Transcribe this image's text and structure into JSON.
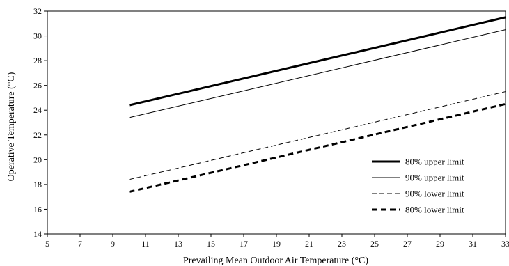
{
  "chart_data": {
    "type": "line",
    "title": "",
    "xlabel": "Prevailing Mean Outdoor Air Temperature (°C)",
    "ylabel": "Operative Temperature (°C)",
    "xlim": [
      5,
      33
    ],
    "ylim": [
      14,
      32
    ],
    "xticks": [
      5,
      7,
      9,
      11,
      13,
      15,
      17,
      19,
      21,
      23,
      25,
      27,
      29,
      31,
      33
    ],
    "yticks": [
      14,
      16,
      18,
      20,
      22,
      24,
      26,
      28,
      30,
      32
    ],
    "grid": false,
    "legend_position": "bottom-right",
    "series": [
      {
        "name": "80% upper limit",
        "x": [
          10,
          33
        ],
        "y": [
          24.4,
          31.5
        ],
        "style": "solid",
        "weight": "thick",
        "color": "#000000"
      },
      {
        "name": "90% upper limit",
        "x": [
          10,
          33
        ],
        "y": [
          23.4,
          30.5
        ],
        "style": "solid",
        "weight": "thin",
        "color": "#000000"
      },
      {
        "name": "90% lower limit",
        "x": [
          10,
          33
        ],
        "y": [
          18.4,
          25.5
        ],
        "style": "dashed",
        "weight": "thin",
        "color": "#000000"
      },
      {
        "name": "80% lower limit",
        "x": [
          10,
          33
        ],
        "y": [
          17.4,
          24.5
        ],
        "style": "dashed",
        "weight": "thick",
        "color": "#000000"
      }
    ]
  }
}
